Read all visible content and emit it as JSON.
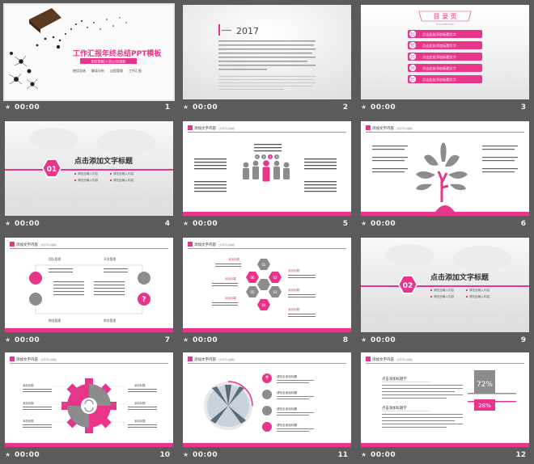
{
  "slides": [
    {
      "duration": "00:00",
      "number": "1",
      "title": "工作汇报年终总结PPT模板",
      "subtitle": "职位简报/人员公司/述职",
      "menu": [
        "使用总结",
        "解读分析",
        "过程管理",
        "工作汇报"
      ]
    },
    {
      "duration": "00:00",
      "number": "2",
      "year": "2017"
    },
    {
      "duration": "00:00",
      "number": "3",
      "title": "目 录 页",
      "subtitle": "PLUS DIRECTORY",
      "items": [
        {
          "num": "01",
          "label": "点击此处添加标题文字"
        },
        {
          "num": "02",
          "label": "点击此处添加标题文字"
        },
        {
          "num": "03",
          "label": "点击此处添加标题文字"
        },
        {
          "num": "04",
          "label": "点击此处添加标题文字"
        },
        {
          "num": "05",
          "label": "点击此处添加标题文字"
        }
      ]
    },
    {
      "duration": "00:00",
      "number": "4",
      "section_num": "01",
      "title": "点击添加文字标题",
      "bullets": [
        "请在此输入内容",
        "请在此输入内容",
        "请在此输入内容",
        "请在此输入内容"
      ]
    },
    {
      "duration": "00:00",
      "number": "5",
      "header": "添加文字内容",
      "header_sub": "(文字可以编辑)",
      "steps": [
        "1",
        "2",
        "3",
        "4"
      ]
    },
    {
      "duration": "00:00",
      "number": "6",
      "header": "添加文字内容",
      "header_sub": "(文字可以编辑)"
    },
    {
      "duration": "00:00",
      "number": "7",
      "header": "添加文字内容",
      "header_sub": "(文字可以编辑)",
      "labels": [
        "团队管理",
        "开发管理",
        "物流管理",
        "财务管理"
      ]
    },
    {
      "duration": "00:00",
      "number": "8",
      "header": "添加文字内容",
      "header_sub": "(文字可以编辑)",
      "hex_nums": [
        "01",
        "02",
        "03",
        "04",
        "05",
        "06"
      ],
      "side_labels": [
        "添加标题",
        "添加标题",
        "添加标题",
        "添加标题",
        "添加标题",
        "添加标题"
      ]
    },
    {
      "duration": "00:00",
      "number": "9",
      "section_num": "02",
      "title": "点击添加文字标题",
      "bullets": [
        "请在此输入内容",
        "请在此输入内容",
        "请在此输入内容",
        "请在此输入内容"
      ]
    },
    {
      "duration": "00:00",
      "number": "10",
      "header": "添加文字内容",
      "header_sub": "(文字可以编辑)",
      "labels": [
        "添加标题",
        "添加标题",
        "添加标题",
        "添加标题",
        "添加标题",
        "添加标题"
      ]
    },
    {
      "duration": "00:00",
      "number": "11",
      "header": "添加文字内容",
      "header_sub": "(文字可以编辑)",
      "items": [
        "请在此添加标题",
        "请在此添加标题",
        "请在此添加标题",
        "请在此添加标题"
      ]
    },
    {
      "duration": "00:00",
      "number": "12",
      "header": "添加文字内容",
      "header_sub": "(文字可以编辑)",
      "heading1": "点击添加标题字",
      "heading2": "点击添加标题字",
      "pct1": "72%",
      "pct2": "28%"
    }
  ],
  "colors": {
    "accent": "#e8358c",
    "gray": "#8c8c8c",
    "background": "#5b5b5b"
  }
}
